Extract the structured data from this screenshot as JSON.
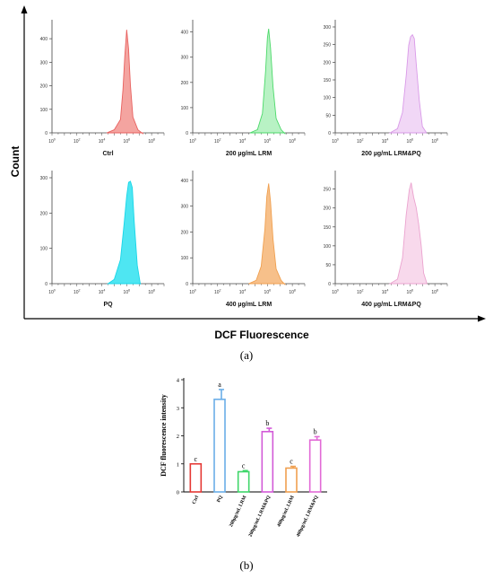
{
  "figure": {
    "panel_a_label": "(a)",
    "panel_b_label": "(b)",
    "x_axis_title": "DCF Fluorescence",
    "y_axis_title": "Count"
  },
  "chart_data": [
    {
      "type": "area",
      "panel": "a",
      "histograms": [
        {
          "label": "Ctrl",
          "color": "#e8615f",
          "fill": "#f4a4a0",
          "ylim": [
            0,
            450
          ],
          "yticks": [
            0,
            100,
            200,
            300,
            400
          ],
          "peak_log": 6.0,
          "height": 435,
          "x_log": [
            4.4,
            5.0,
            5.5,
            5.7,
            5.85,
            6.0,
            6.15,
            6.3,
            6.5,
            6.9,
            7.3
          ],
          "y": [
            0,
            10,
            60,
            180,
            330,
            435,
            360,
            200,
            70,
            10,
            0
          ]
        },
        {
          "label": "200 µg/mL LRM",
          "color": "#4cd96a",
          "fill": "#b8f2c4",
          "ylim": [
            0,
            420
          ],
          "yticks": [
            0,
            100,
            200,
            300,
            400
          ],
          "peak_log": 6.1,
          "height": 410,
          "x_log": [
            4.6,
            5.2,
            5.6,
            5.85,
            6.0,
            6.1,
            6.25,
            6.45,
            6.7,
            7.1,
            7.4
          ],
          "y": [
            0,
            10,
            80,
            240,
            380,
            410,
            340,
            180,
            60,
            10,
            0
          ]
        },
        {
          "label": "200 µg/mL LRM&PQ",
          "color": "#d99ae8",
          "fill": "#f1d7f6",
          "ylim": [
            0,
            300
          ],
          "yticks": [
            0,
            50,
            100,
            150,
            200,
            250,
            300
          ],
          "peak_log": 6.2,
          "height": 280,
          "x_log": [
            4.4,
            5.0,
            5.4,
            5.7,
            5.9,
            6.05,
            6.2,
            6.35,
            6.5,
            6.75,
            7.0,
            7.3
          ],
          "y": [
            0,
            10,
            60,
            160,
            250,
            270,
            280,
            265,
            200,
            90,
            20,
            0
          ]
        },
        {
          "label": "PQ",
          "color": "#18d6e8",
          "fill": "#4ee6f2",
          "ylim": [
            0,
            300
          ],
          "yticks": [
            0,
            100,
            200,
            300
          ],
          "peak_log": 6.3,
          "height": 292,
          "x_log": [
            4.5,
            5.0,
            5.5,
            5.8,
            6.0,
            6.15,
            6.3,
            6.45,
            6.6,
            6.85,
            7.1
          ],
          "y": [
            0,
            10,
            70,
            170,
            250,
            285,
            292,
            270,
            180,
            50,
            0
          ]
        },
        {
          "label": "400 µg/mL LRM",
          "color": "#f0a050",
          "fill": "#f7c08a",
          "ylim": [
            0,
            410
          ],
          "yticks": [
            0,
            100,
            200,
            300,
            400
          ],
          "peak_log": 6.1,
          "height": 385,
          "x_log": [
            4.5,
            5.1,
            5.5,
            5.8,
            5.95,
            6.1,
            6.25,
            6.45,
            6.7,
            7.1,
            7.4
          ],
          "y": [
            0,
            10,
            70,
            210,
            340,
            385,
            320,
            170,
            60,
            10,
            0
          ]
        },
        {
          "label": "400 µg/mL LRM&PQ",
          "color": "#eba3cf",
          "fill": "#f8d9ec",
          "ylim": [
            0,
            280
          ],
          "yticks": [
            0,
            50,
            100,
            150,
            200,
            250
          ],
          "peak_log": 6.1,
          "height": 265,
          "x_log": [
            4.4,
            5.0,
            5.4,
            5.7,
            5.95,
            6.1,
            6.3,
            6.5,
            6.7,
            6.9,
            7.1,
            7.35
          ],
          "y": [
            0,
            10,
            70,
            180,
            250,
            265,
            230,
            200,
            160,
            100,
            30,
            0
          ]
        }
      ],
      "x_ticks_exponents": [
        0,
        2,
        4,
        6,
        8
      ]
    },
    {
      "type": "bar",
      "panel": "b",
      "ylabel": "DCF fluorescence intensity",
      "ylim": [
        0,
        4
      ],
      "yticks": [
        0,
        1,
        2,
        3,
        4
      ],
      "categories": [
        "Ctrl",
        "PQ",
        "200μg/mL LRM",
        "200μg/mL LRM&PQ",
        "400μg/mL LRM",
        "400μg/mL LRM&PQ"
      ],
      "values": [
        1.0,
        3.3,
        0.72,
        2.15,
        0.85,
        1.85
      ],
      "errors": [
        0.0,
        0.35,
        0.04,
        0.12,
        0.06,
        0.12
      ],
      "letters": [
        "c",
        "a",
        "c",
        "b",
        "c",
        "b"
      ],
      "colors": [
        "#e53935",
        "#6aaee8",
        "#3fd66a",
        "#d35ad8",
        "#f0a050",
        "#e26ad6"
      ]
    }
  ]
}
